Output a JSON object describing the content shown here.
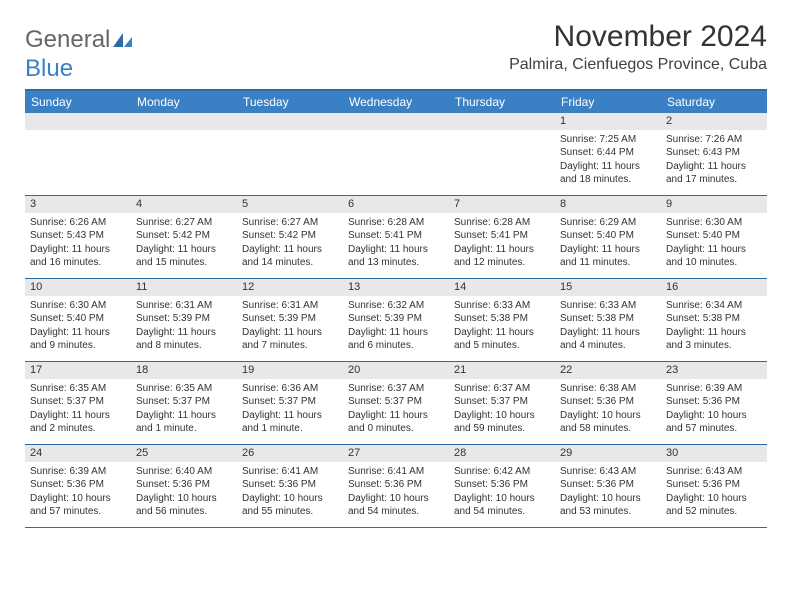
{
  "logo": {
    "text1": "General",
    "text2": "Blue"
  },
  "title": "November 2024",
  "location": "Palmira, Cienfuegos Province, Cuba",
  "colors": {
    "header_bg": "#3a80c4",
    "border": "#2b6ca3",
    "daynum_bg": "#e8e8ea",
    "text": "#333333",
    "logo_gray": "#666666",
    "logo_blue": "#3a80c4"
  },
  "daynames": [
    "Sunday",
    "Monday",
    "Tuesday",
    "Wednesday",
    "Thursday",
    "Friday",
    "Saturday"
  ],
  "weeks": [
    [
      {
        "n": "",
        "lines": [
          "",
          "",
          "",
          ""
        ]
      },
      {
        "n": "",
        "lines": [
          "",
          "",
          "",
          ""
        ]
      },
      {
        "n": "",
        "lines": [
          "",
          "",
          "",
          ""
        ]
      },
      {
        "n": "",
        "lines": [
          "",
          "",
          "",
          ""
        ]
      },
      {
        "n": "",
        "lines": [
          "",
          "",
          "",
          ""
        ]
      },
      {
        "n": "1",
        "lines": [
          "Sunrise: 7:25 AM",
          "Sunset: 6:44 PM",
          "Daylight: 11 hours",
          "and 18 minutes."
        ]
      },
      {
        "n": "2",
        "lines": [
          "Sunrise: 7:26 AM",
          "Sunset: 6:43 PM",
          "Daylight: 11 hours",
          "and 17 minutes."
        ]
      }
    ],
    [
      {
        "n": "3",
        "lines": [
          "Sunrise: 6:26 AM",
          "Sunset: 5:43 PM",
          "Daylight: 11 hours",
          "and 16 minutes."
        ]
      },
      {
        "n": "4",
        "lines": [
          "Sunrise: 6:27 AM",
          "Sunset: 5:42 PM",
          "Daylight: 11 hours",
          "and 15 minutes."
        ]
      },
      {
        "n": "5",
        "lines": [
          "Sunrise: 6:27 AM",
          "Sunset: 5:42 PM",
          "Daylight: 11 hours",
          "and 14 minutes."
        ]
      },
      {
        "n": "6",
        "lines": [
          "Sunrise: 6:28 AM",
          "Sunset: 5:41 PM",
          "Daylight: 11 hours",
          "and 13 minutes."
        ]
      },
      {
        "n": "7",
        "lines": [
          "Sunrise: 6:28 AM",
          "Sunset: 5:41 PM",
          "Daylight: 11 hours",
          "and 12 minutes."
        ]
      },
      {
        "n": "8",
        "lines": [
          "Sunrise: 6:29 AM",
          "Sunset: 5:40 PM",
          "Daylight: 11 hours",
          "and 11 minutes."
        ]
      },
      {
        "n": "9",
        "lines": [
          "Sunrise: 6:30 AM",
          "Sunset: 5:40 PM",
          "Daylight: 11 hours",
          "and 10 minutes."
        ]
      }
    ],
    [
      {
        "n": "10",
        "lines": [
          "Sunrise: 6:30 AM",
          "Sunset: 5:40 PM",
          "Daylight: 11 hours",
          "and 9 minutes."
        ]
      },
      {
        "n": "11",
        "lines": [
          "Sunrise: 6:31 AM",
          "Sunset: 5:39 PM",
          "Daylight: 11 hours",
          "and 8 minutes."
        ]
      },
      {
        "n": "12",
        "lines": [
          "Sunrise: 6:31 AM",
          "Sunset: 5:39 PM",
          "Daylight: 11 hours",
          "and 7 minutes."
        ]
      },
      {
        "n": "13",
        "lines": [
          "Sunrise: 6:32 AM",
          "Sunset: 5:39 PM",
          "Daylight: 11 hours",
          "and 6 minutes."
        ]
      },
      {
        "n": "14",
        "lines": [
          "Sunrise: 6:33 AM",
          "Sunset: 5:38 PM",
          "Daylight: 11 hours",
          "and 5 minutes."
        ]
      },
      {
        "n": "15",
        "lines": [
          "Sunrise: 6:33 AM",
          "Sunset: 5:38 PM",
          "Daylight: 11 hours",
          "and 4 minutes."
        ]
      },
      {
        "n": "16",
        "lines": [
          "Sunrise: 6:34 AM",
          "Sunset: 5:38 PM",
          "Daylight: 11 hours",
          "and 3 minutes."
        ]
      }
    ],
    [
      {
        "n": "17",
        "lines": [
          "Sunrise: 6:35 AM",
          "Sunset: 5:37 PM",
          "Daylight: 11 hours",
          "and 2 minutes."
        ]
      },
      {
        "n": "18",
        "lines": [
          "Sunrise: 6:35 AM",
          "Sunset: 5:37 PM",
          "Daylight: 11 hours",
          "and 1 minute."
        ]
      },
      {
        "n": "19",
        "lines": [
          "Sunrise: 6:36 AM",
          "Sunset: 5:37 PM",
          "Daylight: 11 hours",
          "and 1 minute."
        ]
      },
      {
        "n": "20",
        "lines": [
          "Sunrise: 6:37 AM",
          "Sunset: 5:37 PM",
          "Daylight: 11 hours",
          "and 0 minutes."
        ]
      },
      {
        "n": "21",
        "lines": [
          "Sunrise: 6:37 AM",
          "Sunset: 5:37 PM",
          "Daylight: 10 hours",
          "and 59 minutes."
        ]
      },
      {
        "n": "22",
        "lines": [
          "Sunrise: 6:38 AM",
          "Sunset: 5:36 PM",
          "Daylight: 10 hours",
          "and 58 minutes."
        ]
      },
      {
        "n": "23",
        "lines": [
          "Sunrise: 6:39 AM",
          "Sunset: 5:36 PM",
          "Daylight: 10 hours",
          "and 57 minutes."
        ]
      }
    ],
    [
      {
        "n": "24",
        "lines": [
          "Sunrise: 6:39 AM",
          "Sunset: 5:36 PM",
          "Daylight: 10 hours",
          "and 57 minutes."
        ]
      },
      {
        "n": "25",
        "lines": [
          "Sunrise: 6:40 AM",
          "Sunset: 5:36 PM",
          "Daylight: 10 hours",
          "and 56 minutes."
        ]
      },
      {
        "n": "26",
        "lines": [
          "Sunrise: 6:41 AM",
          "Sunset: 5:36 PM",
          "Daylight: 10 hours",
          "and 55 minutes."
        ]
      },
      {
        "n": "27",
        "lines": [
          "Sunrise: 6:41 AM",
          "Sunset: 5:36 PM",
          "Daylight: 10 hours",
          "and 54 minutes."
        ]
      },
      {
        "n": "28",
        "lines": [
          "Sunrise: 6:42 AM",
          "Sunset: 5:36 PM",
          "Daylight: 10 hours",
          "and 54 minutes."
        ]
      },
      {
        "n": "29",
        "lines": [
          "Sunrise: 6:43 AM",
          "Sunset: 5:36 PM",
          "Daylight: 10 hours",
          "and 53 minutes."
        ]
      },
      {
        "n": "30",
        "lines": [
          "Sunrise: 6:43 AM",
          "Sunset: 5:36 PM",
          "Daylight: 10 hours",
          "and 52 minutes."
        ]
      }
    ]
  ]
}
